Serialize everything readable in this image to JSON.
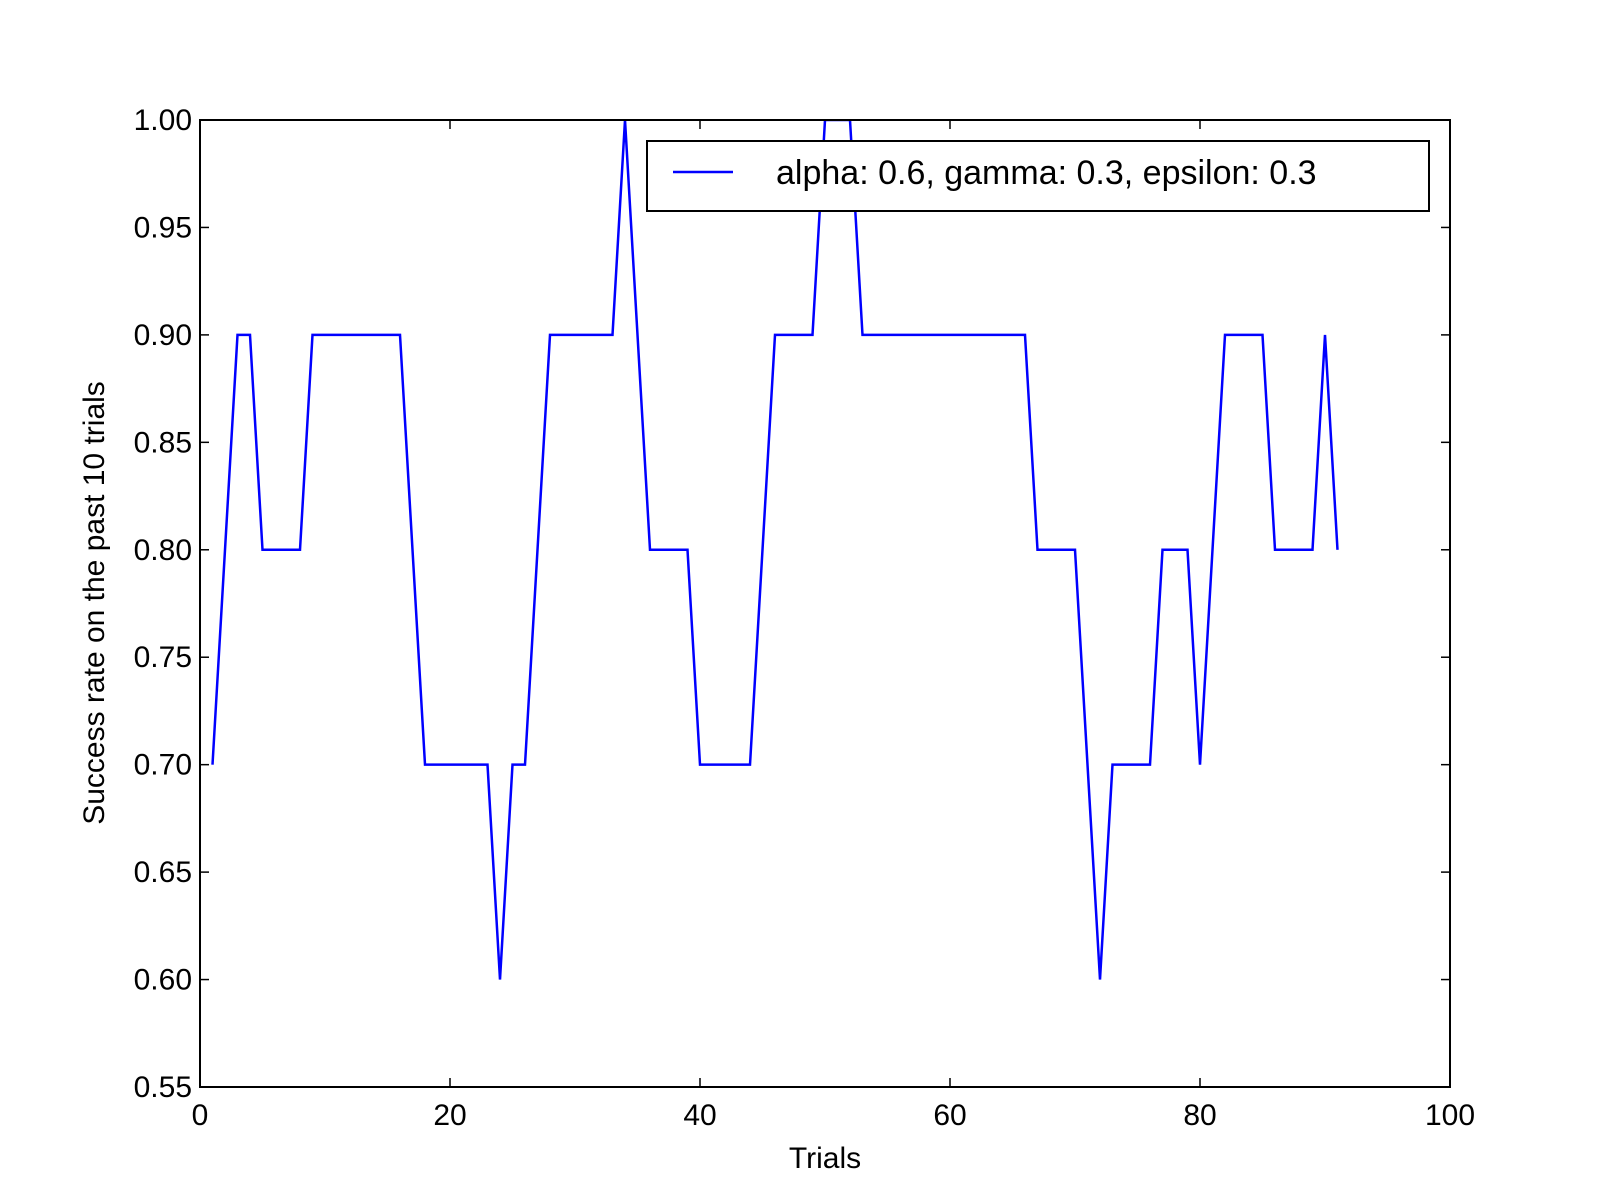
{
  "chart_data": {
    "type": "line",
    "title": "",
    "xlabel": "Trials",
    "ylabel": "Success rate on the past 10 trials",
    "xlim": [
      0,
      100
    ],
    "ylim": [
      0.55,
      1.0
    ],
    "xticks": [
      0,
      20,
      40,
      60,
      80,
      100
    ],
    "xtick_labels": [
      "0",
      "20",
      "40",
      "60",
      "80",
      "100"
    ],
    "yticks": [
      0.55,
      0.6,
      0.65,
      0.7,
      0.75,
      0.8,
      0.85,
      0.9,
      0.95,
      1.0
    ],
    "ytick_labels": [
      "0.55",
      "0.60",
      "0.65",
      "0.70",
      "0.75",
      "0.80",
      "0.85",
      "0.90",
      "0.95",
      "1.00"
    ],
    "grid": false,
    "legend_position": "top-right",
    "series": [
      {
        "name": "alpha: 0.6, gamma: 0.3, epsilon: 0.3",
        "color": "#0000ff",
        "x": [
          1,
          3,
          4,
          5,
          8,
          9,
          16,
          18,
          23,
          24,
          25,
          26,
          28,
          33,
          34,
          36,
          39,
          40,
          44,
          46,
          49,
          50,
          52,
          53,
          66,
          67,
          70,
          72,
          73,
          76,
          77,
          79,
          80,
          82,
          85,
          86,
          89,
          90,
          91
        ],
        "y": [
          0.7,
          0.9,
          0.9,
          0.8,
          0.8,
          0.9,
          0.9,
          0.7,
          0.7,
          0.6,
          0.7,
          0.7,
          0.9,
          0.9,
          1.0,
          0.8,
          0.8,
          0.7,
          0.7,
          0.9,
          0.9,
          1.0,
          1.0,
          0.9,
          0.9,
          0.8,
          0.8,
          0.6,
          0.7,
          0.7,
          0.8,
          0.8,
          0.7,
          0.9,
          0.9,
          0.8,
          0.8,
          0.9,
          0.8
        ]
      }
    ]
  }
}
